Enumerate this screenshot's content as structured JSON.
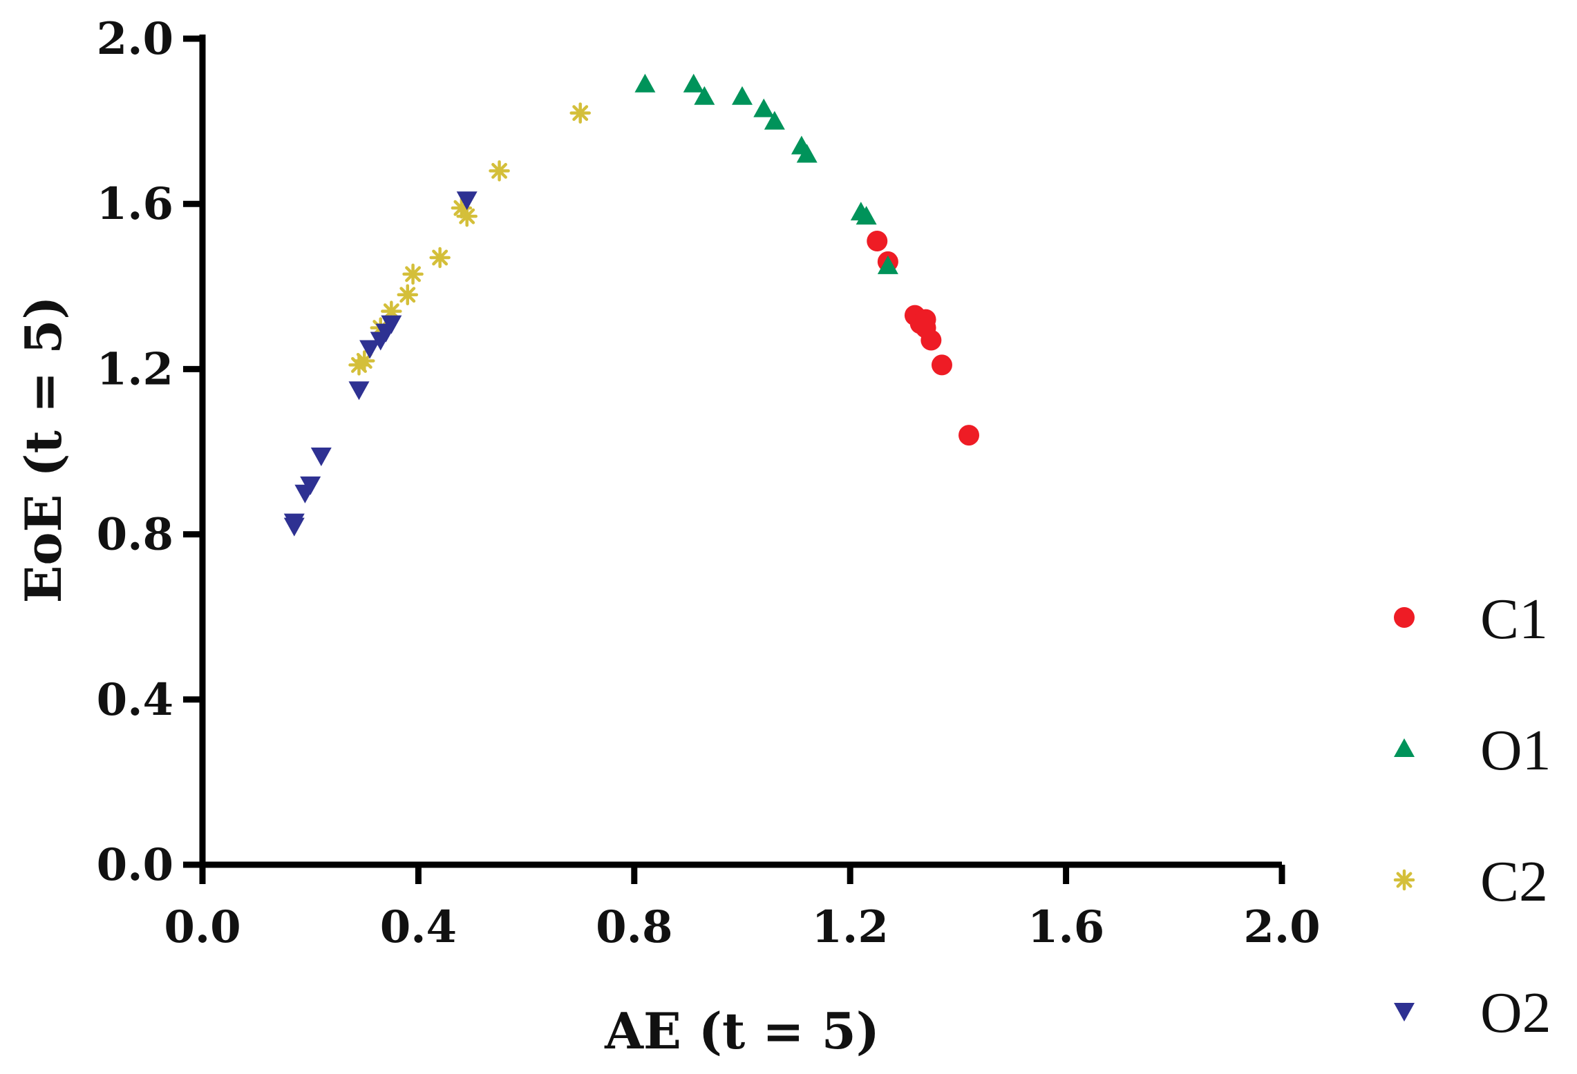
{
  "chart_data": {
    "type": "scatter",
    "xlabel": "AE (t = 5)",
    "ylabel": "EoE (t = 5)",
    "xlim": [
      0,
      2
    ],
    "ylim": [
      0,
      2
    ],
    "xticks": [
      "0.0",
      "0.4",
      "0.8",
      "1.2",
      "1.6",
      "2.0"
    ],
    "yticks": [
      "0.0",
      "0.4",
      "0.8",
      "1.2",
      "1.6",
      "2.0"
    ],
    "grid": false,
    "legend_position": "right",
    "series": [
      {
        "name": "C1",
        "marker": "circle",
        "color": "#ee1c25",
        "points": [
          [
            1.25,
            1.51
          ],
          [
            1.27,
            1.46
          ],
          [
            1.32,
            1.33
          ],
          [
            1.33,
            1.31
          ],
          [
            1.34,
            1.32
          ],
          [
            1.34,
            1.3
          ],
          [
            1.35,
            1.27
          ],
          [
            1.37,
            1.21
          ],
          [
            1.42,
            1.04
          ]
        ]
      },
      {
        "name": "O1",
        "marker": "triangle-up",
        "color": "#00935a",
        "points": [
          [
            0.82,
            1.89
          ],
          [
            0.91,
            1.89
          ],
          [
            0.93,
            1.86
          ],
          [
            1.0,
            1.86
          ],
          [
            1.04,
            1.83
          ],
          [
            1.06,
            1.8
          ],
          [
            1.11,
            1.74
          ],
          [
            1.12,
            1.72
          ],
          [
            1.22,
            1.58
          ],
          [
            1.23,
            1.57
          ],
          [
            1.27,
            1.45
          ]
        ]
      },
      {
        "name": "C2",
        "marker": "asterisk",
        "color": "#d4bf3a",
        "points": [
          [
            0.29,
            1.21
          ],
          [
            0.3,
            1.22
          ],
          [
            0.33,
            1.3
          ],
          [
            0.35,
            1.34
          ],
          [
            0.38,
            1.38
          ],
          [
            0.39,
            1.43
          ],
          [
            0.44,
            1.47
          ],
          [
            0.48,
            1.59
          ],
          [
            0.49,
            1.57
          ],
          [
            0.55,
            1.68
          ],
          [
            0.7,
            1.82
          ]
        ]
      },
      {
        "name": "O2",
        "marker": "triangle-down",
        "color": "#2e3192",
        "points": [
          [
            0.17,
            0.83
          ],
          [
            0.17,
            0.82
          ],
          [
            0.19,
            0.9
          ],
          [
            0.2,
            0.92
          ],
          [
            0.22,
            0.99
          ],
          [
            0.29,
            1.15
          ],
          [
            0.31,
            1.25
          ],
          [
            0.33,
            1.27
          ],
          [
            0.34,
            1.29
          ],
          [
            0.35,
            1.31
          ],
          [
            0.49,
            1.61
          ]
        ]
      }
    ]
  }
}
